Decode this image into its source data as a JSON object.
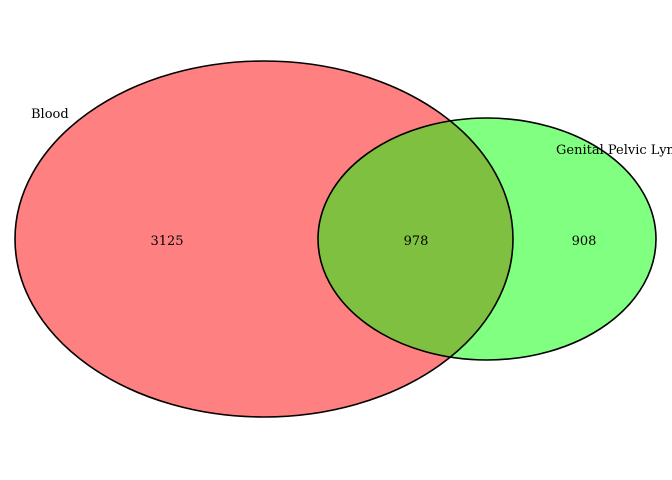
{
  "diagram": {
    "type": "venn",
    "sets": [
      {
        "label": "Blood",
        "only_count": "3125",
        "fill": "#ff8080"
      },
      {
        "label": "Genital Pelvic Lymph Node",
        "only_count": "908",
        "fill": "#80ff80"
      }
    ],
    "intersection": {
      "count": "978",
      "fill": "#80c040"
    },
    "outline_color": "#000000",
    "background": "#ffffff"
  }
}
